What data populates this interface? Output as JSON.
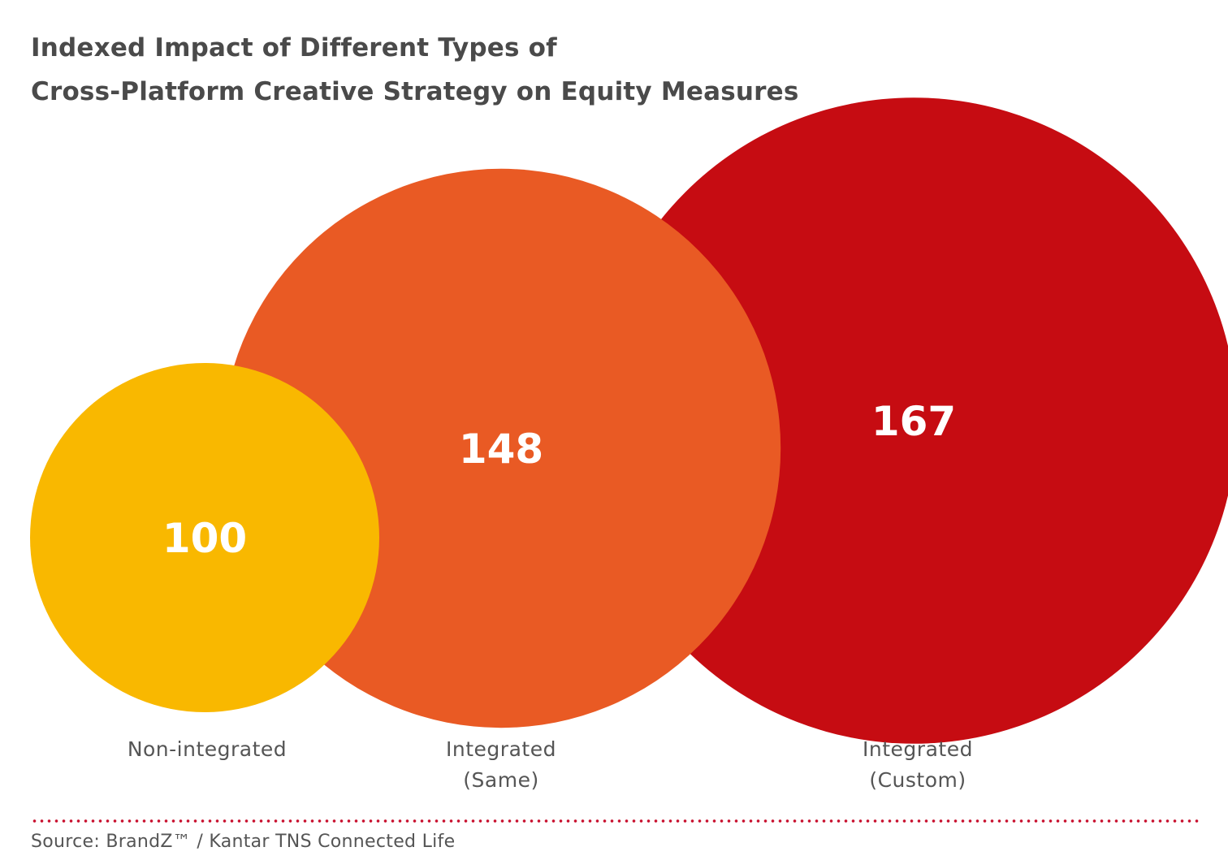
{
  "title": {
    "line1": "Indexed Impact of Different Types of",
    "line2": "Cross-Platform Creative Strategy on Equity Measures"
  },
  "chart_data": {
    "type": "bubble",
    "title": "Indexed Impact of Different Types of Cross-Platform Creative Strategy on Equity Measures",
    "categories": [
      "Non-integrated",
      "Integrated (Same)",
      "Integrated (Custom)"
    ],
    "values": [
      100,
      148,
      167
    ],
    "label_lines": [
      [
        "Non-integrated"
      ],
      [
        "Integrated",
        "(Same)"
      ],
      [
        "Integrated",
        "(Custom)"
      ]
    ],
    "colors": [
      "#f9b800",
      "#e95a24",
      "#c60c12"
    ]
  },
  "source": "Source: BrandZ™ / Kantar TNS Connected Life"
}
